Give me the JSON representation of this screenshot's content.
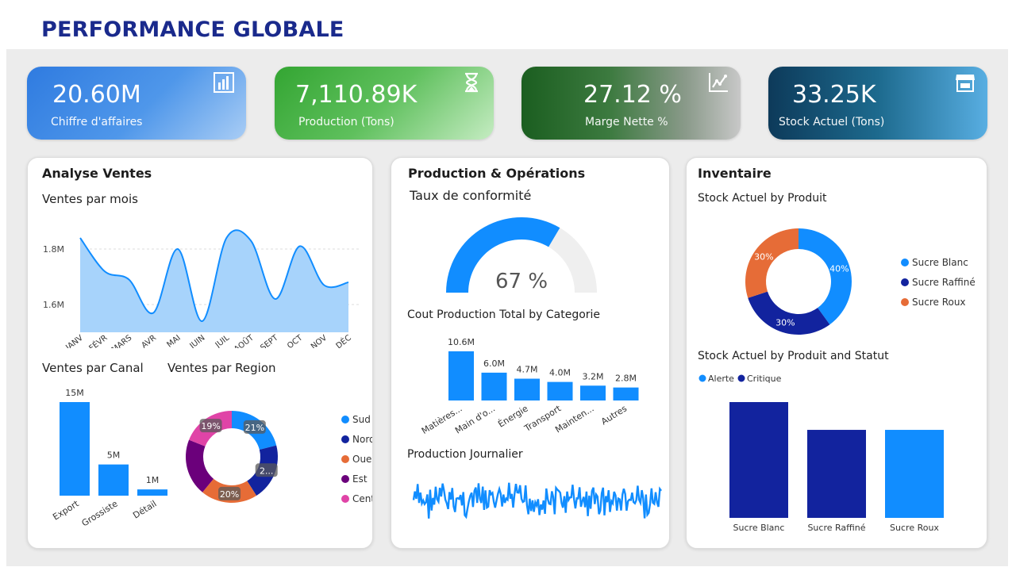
{
  "page_title": "PERFORMANCE GLOBALE",
  "kpis": [
    {
      "value": "20.60M",
      "label": "Chiffre d'affaires",
      "icon": "bar-chart-icon"
    },
    {
      "value": "7,110.89K",
      "label": "Production (Tons)",
      "icon": "hourglass-icon"
    },
    {
      "value": "27.12 %",
      "label": "Marge Nette %",
      "icon": "trend-line-icon"
    },
    {
      "value": "33.25K",
      "label": "Stock Actuel (Tons)",
      "icon": "store-icon"
    }
  ],
  "sales": {
    "title": "Analyse Ventes",
    "monthly_title": "Ventes par mois",
    "channel_title": "Ventes par Canal",
    "region_title": "Ventes par Region"
  },
  "production": {
    "title": "Production & Opérations",
    "gauge_title": "Taux de conformité",
    "gauge_value": "67 %",
    "cost_title": "Cout Production Total by Categorie",
    "daily_title": "Production Journalier"
  },
  "inventory": {
    "title": "Inventaire",
    "stock_title": "Stock Actuel by Produit",
    "status_title": "Stock Actuel by Produit and Statut"
  },
  "colors": {
    "accent": "#118dff",
    "dark_blue": "#12239e",
    "orange": "#e66c37",
    "purple": "#6b007b",
    "pink": "#e044a7"
  },
  "chart_data": [
    {
      "id": "ventes-par-mois",
      "type": "area",
      "title": "Ventes par mois",
      "categories": [
        "JANV",
        "FÉVR",
        "MARS",
        "AVR",
        "MAI",
        "JUIN",
        "JUIL",
        "AOÛT",
        "SEPT",
        "OCT",
        "NOV",
        "DÉC"
      ],
      "values": [
        1.84,
        1.72,
        1.69,
        1.57,
        1.8,
        1.54,
        1.84,
        1.83,
        1.62,
        1.81,
        1.67,
        1.68
      ],
      "yticks": [
        "1.6M",
        "1.8M"
      ],
      "ylim": [
        1.5,
        1.9
      ]
    },
    {
      "id": "ventes-par-canal",
      "type": "bar",
      "title": "Ventes par Canal",
      "categories": [
        "Export",
        "Grossiste",
        "Détail"
      ],
      "values": [
        15,
        5,
        1
      ],
      "labels": [
        "15M",
        "5M",
        "1M"
      ]
    },
    {
      "id": "ventes-par-region",
      "type": "pie",
      "title": "Ventes par Region",
      "categories": [
        "Sud",
        "Nord",
        "Ouest",
        "Est",
        "Centre"
      ],
      "values": [
        21,
        20,
        20,
        20,
        19
      ],
      "labels": [
        "21%",
        "2...",
        "20%",
        "",
        "19%"
      ],
      "colors": [
        "#118dff",
        "#12239e",
        "#e66c37",
        "#6b007b",
        "#e044a7"
      ]
    },
    {
      "id": "taux-conformite",
      "type": "gauge",
      "title": "Taux de conformité",
      "value": 67,
      "max": 100
    },
    {
      "id": "cout-production",
      "type": "bar",
      "title": "Cout Production Total by Categorie",
      "categories": [
        "Matières...",
        "Main d'o...",
        "Énergie",
        "Transport",
        "Mainten...",
        "Autres"
      ],
      "values": [
        10.6,
        6.0,
        4.7,
        4.0,
        3.2,
        2.8
      ],
      "labels": [
        "10.6M",
        "6.0M",
        "4.7M",
        "4.0M",
        "3.2M",
        "2.8M"
      ]
    },
    {
      "id": "production-journalier",
      "type": "line",
      "title": "Production Journalier",
      "points": 180
    },
    {
      "id": "stock-par-produit",
      "type": "pie",
      "title": "Stock Actuel by Produit",
      "categories": [
        "Sucre Blanc",
        "Sucre Raffiné",
        "Sucre Roux"
      ],
      "values": [
        40,
        30,
        30
      ],
      "labels": [
        "40%",
        "30%",
        "30%"
      ],
      "colors": [
        "#118dff",
        "#12239e",
        "#e66c37"
      ]
    },
    {
      "id": "stock-par-statut",
      "type": "bar",
      "title": "Stock Actuel by Produit and Statut",
      "legend": [
        "Alerte",
        "Critique"
      ],
      "legend_colors": [
        "#118dff",
        "#12239e"
      ],
      "categories": [
        "Sucre Blanc",
        "Sucre Raffiné",
        "Sucre Roux"
      ],
      "values": [
        1.0,
        0.76,
        0.76
      ],
      "colors": [
        "#12239e",
        "#12239e",
        "#118dff"
      ]
    }
  ]
}
